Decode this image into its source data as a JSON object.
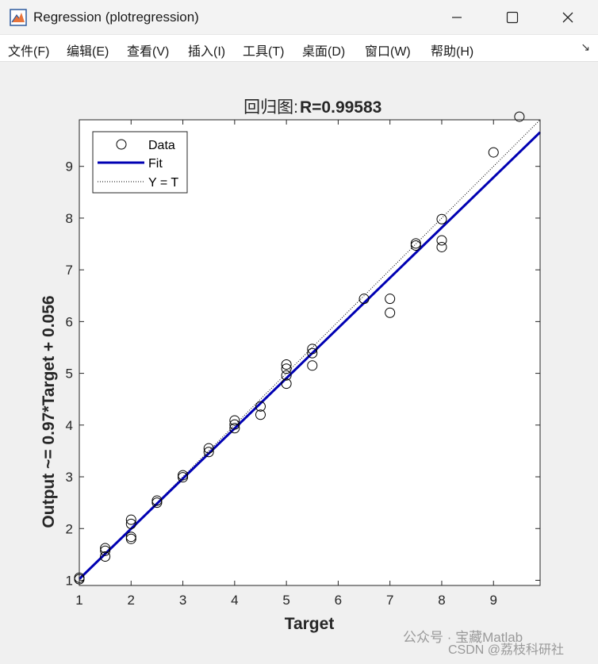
{
  "window": {
    "title": "Regression (plotregression)"
  },
  "menu": {
    "items": [
      "文件(F)",
      "编辑(E)",
      "查看(V)",
      "插入(I)",
      "工具(T)",
      "桌面(D)",
      "窗口(W)",
      "帮助(H)"
    ],
    "overflow_icon": "toolbar-dock-arrow-icon"
  },
  "colors": {
    "fit_line": "#0000b3",
    "axis": "#262626",
    "plot_bg": "#ffffff",
    "figure_bg": "#f0f0f0"
  },
  "chart_data": {
    "type": "scatter",
    "title_prefix": "回归图:",
    "title_value": "R=0.99583",
    "xlabel": "Target",
    "ylabel": "Output ~= 0.97*Target + 0.056",
    "xlim": [
      1,
      9.9
    ],
    "ylim": [
      0.9,
      9.9
    ],
    "xticks": [
      1,
      2,
      3,
      4,
      5,
      6,
      7,
      8,
      9
    ],
    "yticks": [
      1,
      2,
      3,
      4,
      5,
      6,
      7,
      8,
      9
    ],
    "grid": false,
    "legend_position": "top-left",
    "legend": [
      "Data",
      "Fit",
      "Y = T"
    ],
    "fit": {
      "slope": 0.97,
      "intercept": 0.056
    },
    "points": [
      [
        1.0,
        1.05
      ],
      [
        1.0,
        1.02
      ],
      [
        1.5,
        1.62
      ],
      [
        1.5,
        1.57
      ],
      [
        1.5,
        1.46
      ],
      [
        2.0,
        2.17
      ],
      [
        2.0,
        2.09
      ],
      [
        2.0,
        1.84
      ],
      [
        2.0,
        1.8
      ],
      [
        2.5,
        2.54
      ],
      [
        2.5,
        2.5
      ],
      [
        3.0,
        3.03
      ],
      [
        3.0,
        2.99
      ],
      [
        3.5,
        3.55
      ],
      [
        3.5,
        3.48
      ],
      [
        4.0,
        4.09
      ],
      [
        4.0,
        4.01
      ],
      [
        4.0,
        3.94
      ],
      [
        4.5,
        4.36
      ],
      [
        4.5,
        4.2
      ],
      [
        5.0,
        5.17
      ],
      [
        5.0,
        5.09
      ],
      [
        5.0,
        4.96
      ],
      [
        5.0,
        4.8
      ],
      [
        5.5,
        5.47
      ],
      [
        5.5,
        5.39
      ],
      [
        5.5,
        5.15
      ],
      [
        6.5,
        6.44
      ],
      [
        7.0,
        6.44
      ],
      [
        7.0,
        6.17
      ],
      [
        7.5,
        7.51
      ],
      [
        7.5,
        7.47
      ],
      [
        8.0,
        7.98
      ],
      [
        8.0,
        7.57
      ],
      [
        8.0,
        7.44
      ],
      [
        9.0,
        9.27
      ],
      [
        9.5,
        9.96
      ]
    ]
  },
  "watermark": {
    "line1": "公众号 · 宝藏Matlab",
    "line2": "CSDN @荔枝科研社"
  }
}
